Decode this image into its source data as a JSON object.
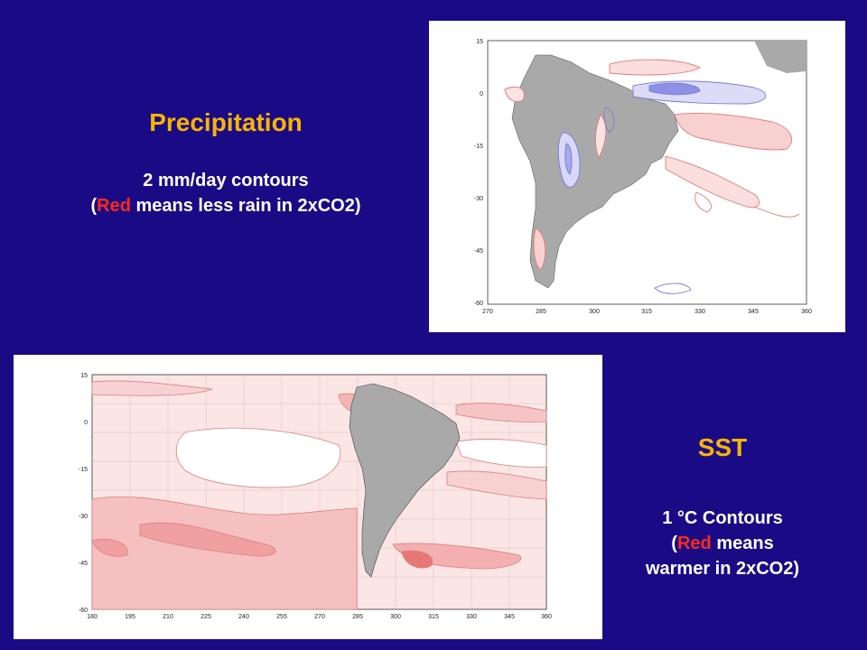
{
  "colors": {
    "background": "#1a0a86",
    "heading": "#f7b500",
    "emphasis": "#ff2a1a",
    "text": "#ffffff",
    "land": "#a9a9a9",
    "warm": "#f4a0a0",
    "cool": "#8f8fe6"
  },
  "precipitation": {
    "title": "Precipitation",
    "line1": "2 mm/day contours",
    "line2_open": "(",
    "line2_red": "Red",
    "line2_rest": " means less rain in 2xCO2)",
    "map": {
      "y_ticks": [
        "15",
        "0",
        "-15",
        "-30",
        "-45",
        "-60"
      ],
      "x_ticks": [
        "270",
        "285",
        "300",
        "315",
        "330",
        "345",
        "360"
      ]
    }
  },
  "sst": {
    "title": "SST",
    "line1": "1 °C Contours",
    "line2_open": "(",
    "line2_red": "Red",
    "line2_rest": " means",
    "line3": "warmer in 2xCO2)",
    "map": {
      "y_ticks": [
        "15",
        "0",
        "-15",
        "-30",
        "-45",
        "-60"
      ],
      "x_ticks": [
        "180",
        "195",
        "210",
        "225",
        "240",
        "255",
        "270",
        "285",
        "300",
        "315",
        "330",
        "345",
        "360"
      ]
    }
  }
}
